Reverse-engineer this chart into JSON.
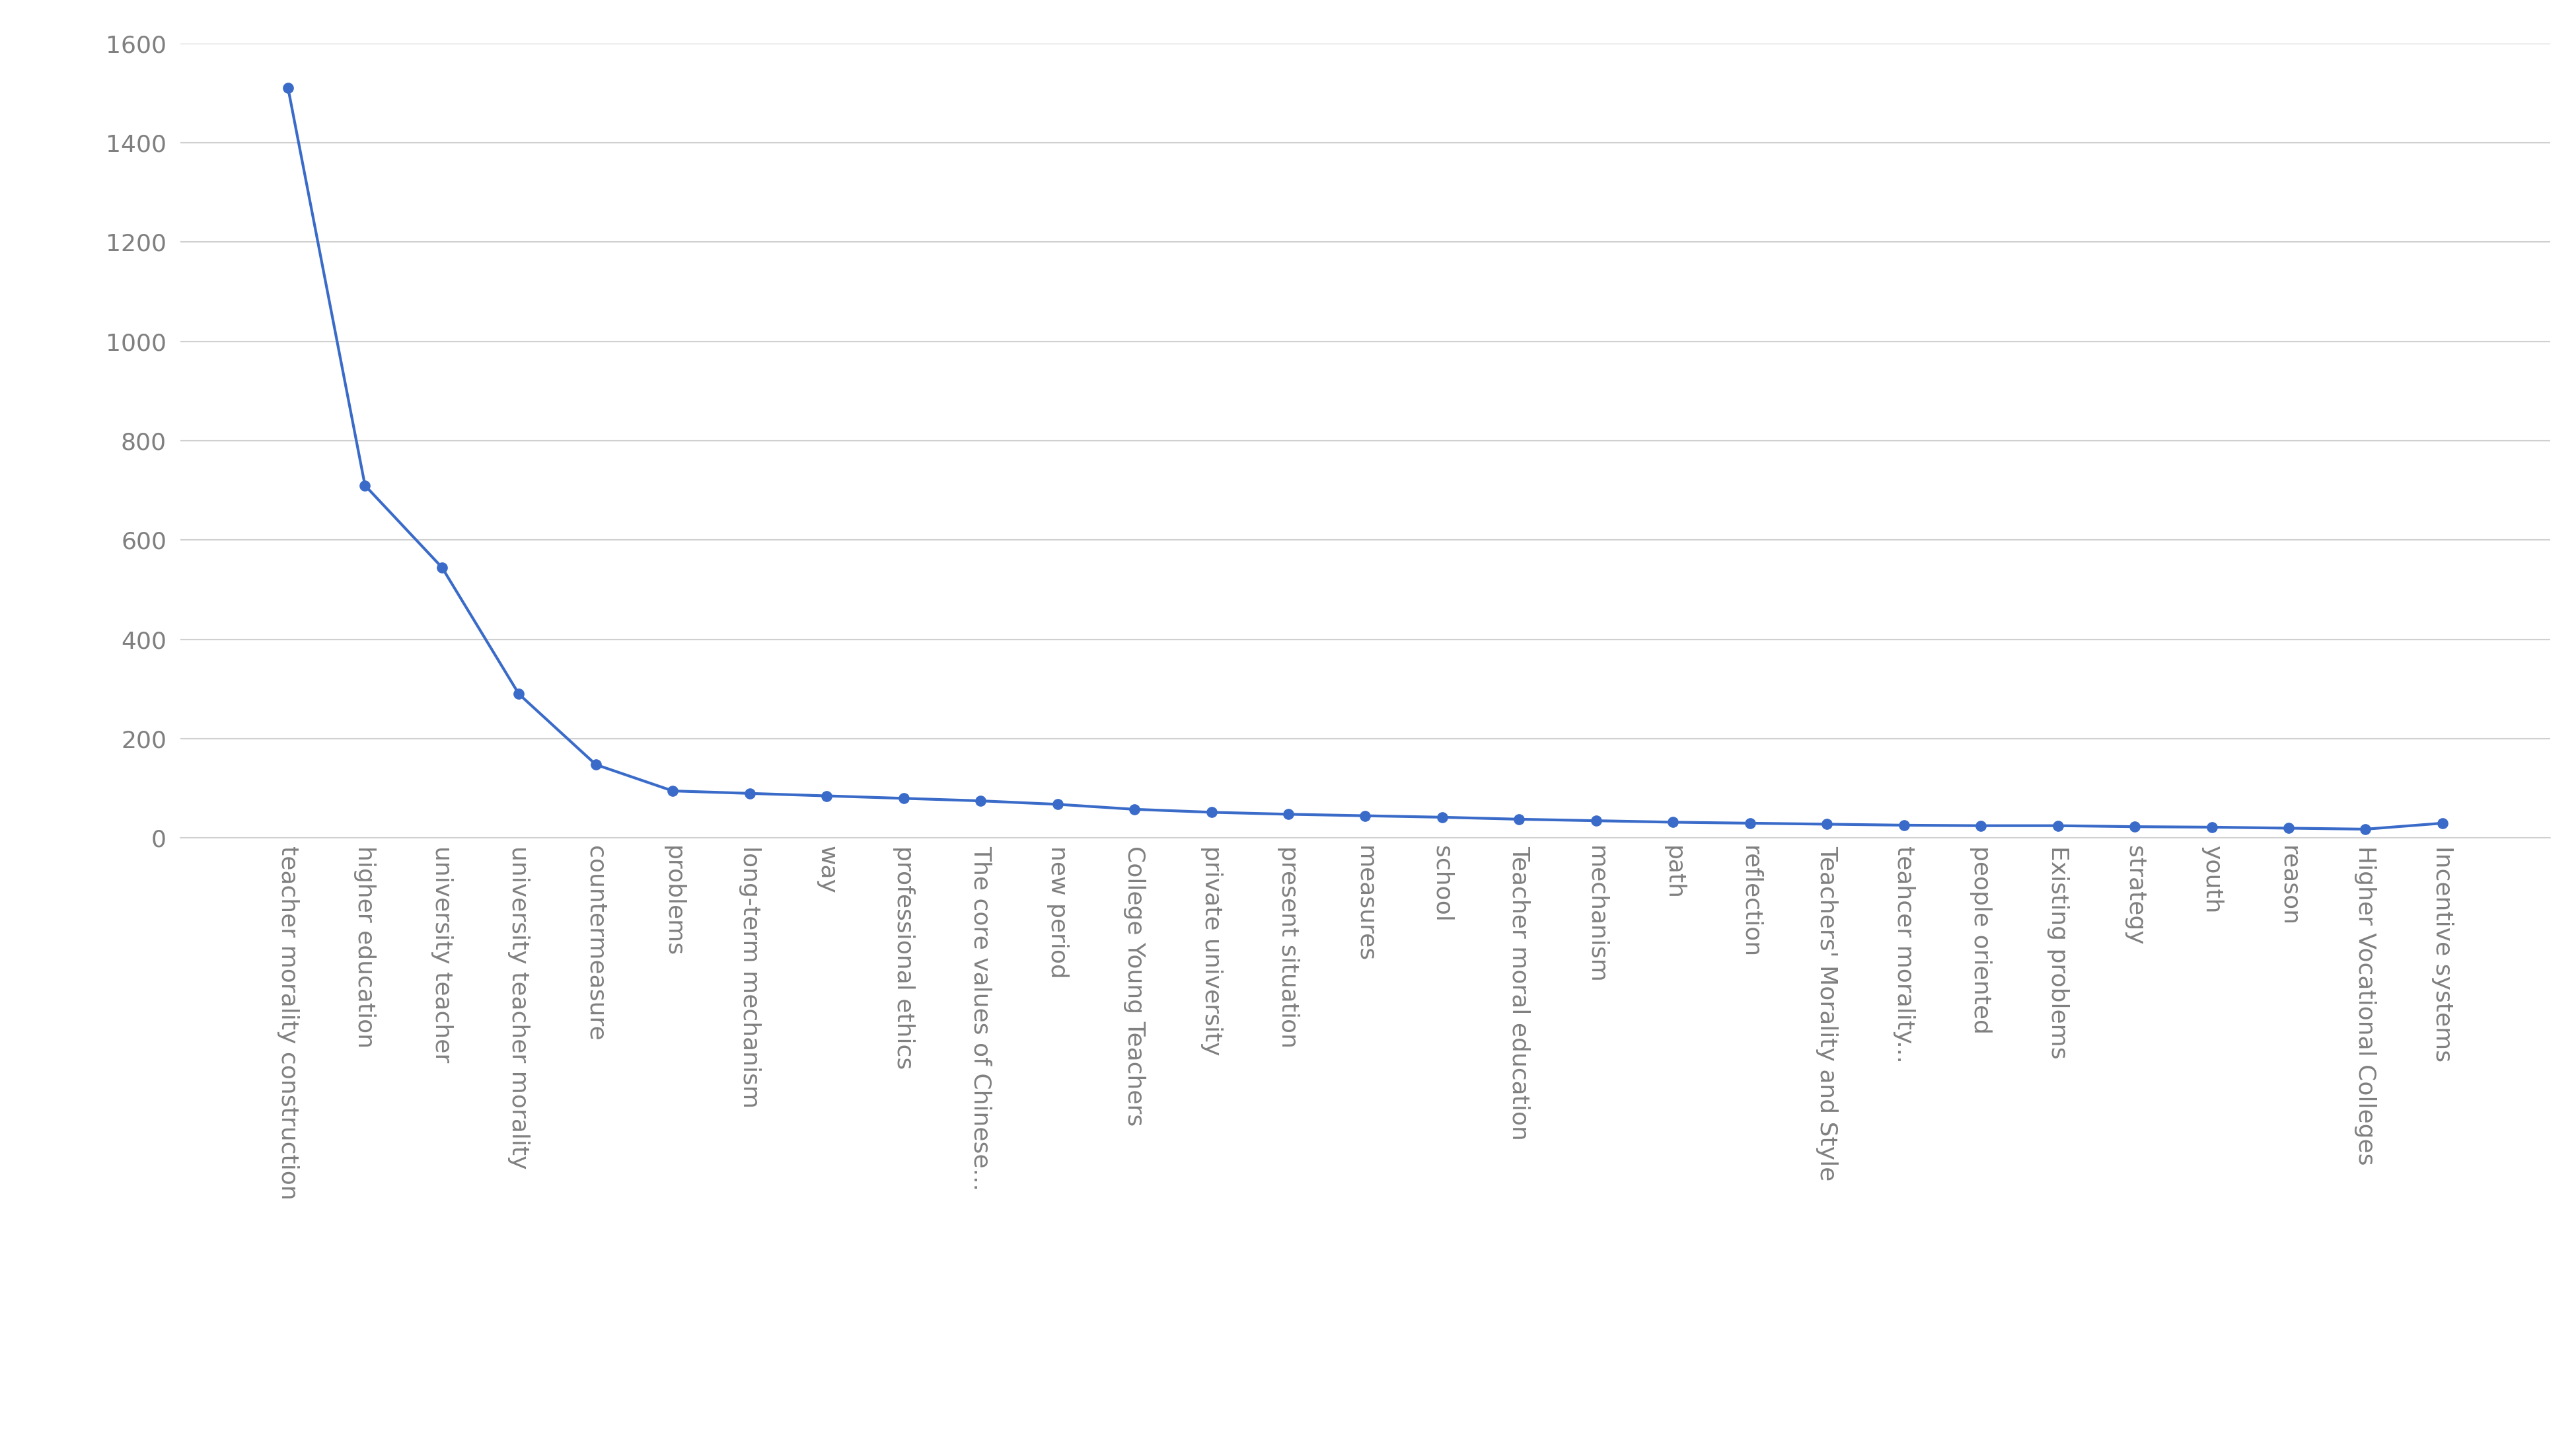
{
  "categories": [
    "teacher morality construction",
    "higher education",
    "university teacher",
    "university teacher morality",
    "countermeasure",
    "problems",
    "long-term mechanism",
    "way",
    "professional ethics",
    "The core values of Chinese...",
    "new period",
    "College Young Teachers",
    "private university",
    "present situation",
    "measures",
    "school",
    "Teacher moral education",
    "mechanism",
    "path",
    "reflection",
    "Teachers' Morality and Style",
    "teahcer morality...",
    "people oriented",
    "Existing problems",
    "strategy",
    "youth",
    "reason",
    "Higher Vocational Colleges",
    "Incentive systems"
  ],
  "values": [
    1510,
    710,
    545,
    290,
    148,
    95,
    90,
    85,
    80,
    75,
    68,
    58,
    52,
    48,
    45,
    42,
    38,
    35,
    32,
    30,
    28,
    26,
    25,
    25,
    23,
    22,
    20,
    18,
    30
  ],
  "line_color": "#3A6BC9",
  "marker_color": "#3A6BC9",
  "background_color": "#ffffff",
  "grid_color": "#d0d0d0",
  "ylim": [
    0,
    1600
  ],
  "yticks": [
    0,
    200,
    400,
    600,
    800,
    1000,
    1200,
    1400,
    1600
  ],
  "tick_label_fontsize": 26,
  "label_color": "#808080",
  "line_width": 3.0,
  "marker_size": 11
}
